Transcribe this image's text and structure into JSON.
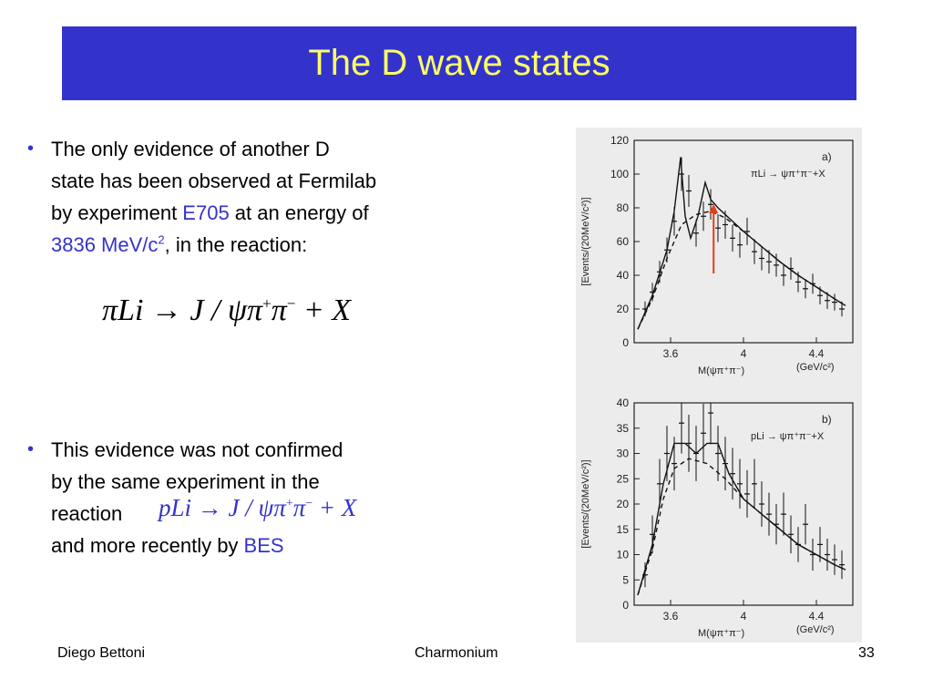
{
  "slide": {
    "title": "The D wave states",
    "bullet1": {
      "line1": "The only evidence of another D",
      "line2": "state has been observed at Fermilab",
      "line3_pre": "by experiment ",
      "line3_exp": "E705",
      "line3_post": " at an energy of",
      "line4_val": "3836 MeV/c",
      "line4_sup": "2",
      "line4_post": ", in the reaction:"
    },
    "equation1": {
      "lhs": "πLi",
      "arrow": "→",
      "jpsi": "J / ψ",
      "pi_plus": "π",
      "plus_sup": "+",
      "pi_minus": "π",
      "minus_sup": "−",
      "rest": "+ X"
    },
    "bullet2": {
      "line1": "This evidence was not confirmed",
      "line2": "by the same experiment in the",
      "line3": "reaction",
      "line4_pre": "and more recently by ",
      "line4_exp": "BES"
    },
    "equation2": {
      "lhs": "pLi",
      "arrow": "→",
      "jpsi": "J / ψ",
      "pi_plus": "π",
      "plus_sup": "+",
      "pi_minus": "π",
      "minus_sup": "−",
      "rest": "+ X"
    },
    "footer": {
      "author": "Diego Bettoni",
      "topic": "Charmonium",
      "page": "33"
    }
  },
  "colors": {
    "title_bg": "#3333cc",
    "title_text": "#ffff66",
    "accent": "#3333cc",
    "marker": "#e0401a"
  },
  "chart_data": [
    {
      "type": "scatter",
      "title": "",
      "panel_label": "a)",
      "legend": "πLi → ψπ⁺π⁻+X",
      "xlabel": "M(ψπ⁺π⁻)",
      "xunit": "(GeV/c²)",
      "ylabel": "[Events/(20MeV/c²)]",
      "xlim": [
        3.4,
        4.6
      ],
      "ylim": [
        0,
        120
      ],
      "xticks": [
        "3.6",
        "4",
        "4.4"
      ],
      "yticks": [
        "0",
        "20",
        "40",
        "60",
        "80",
        "100",
        "120"
      ],
      "marker_arrow_x": 3.836,
      "x": [
        3.46,
        3.5,
        3.54,
        3.58,
        3.62,
        3.66,
        3.7,
        3.74,
        3.78,
        3.82,
        3.86,
        3.9,
        3.94,
        3.98,
        4.02,
        4.06,
        4.1,
        4.14,
        4.18,
        4.22,
        4.26,
        4.3,
        4.34,
        4.38,
        4.42,
        4.46,
        4.5,
        4.54
      ],
      "y": [
        20,
        30,
        42,
        55,
        72,
        100,
        90,
        65,
        75,
        82,
        68,
        70,
        62,
        58,
        66,
        54,
        50,
        48,
        46,
        40,
        44,
        36,
        32,
        35,
        28,
        25,
        24,
        20
      ],
      "series": [
        {
          "name": "",
          "x": [
            3.42,
            3.5,
            3.58,
            3.62,
            3.655,
            3.68,
            3.71,
            3.75,
            3.79,
            3.82,
            3.86,
            3.92,
            4.0,
            4.1,
            4.2,
            4.3,
            4.4,
            4.5,
            4.56
          ],
          "y": [
            8,
            28,
            55,
            78,
            110,
            75,
            62,
            75,
            95,
            85,
            80,
            74,
            66,
            57,
            48,
            40,
            33,
            26,
            22
          ]
        },
        {
          "name": "",
          "x": [
            3.42,
            3.5,
            3.58,
            3.66,
            3.74,
            3.82,
            3.9,
            4.0,
            4.1,
            4.2,
            4.3,
            4.4,
            4.5,
            4.56
          ],
          "y": [
            8,
            26,
            50,
            70,
            76,
            78,
            74,
            66,
            57,
            48,
            40,
            33,
            26,
            22
          ]
        }
      ]
    },
    {
      "type": "scatter",
      "title": "",
      "panel_label": "b)",
      "legend": "pLi → ψπ⁺π⁻+X",
      "xlabel": "M(ψπ⁺π⁻)",
      "xunit": "(GeV/c²)",
      "ylabel": "[Events/(20MeV/c²)]",
      "xlim": [
        3.4,
        4.6
      ],
      "ylim": [
        0,
        40
      ],
      "xticks": [
        "3.6",
        "4",
        "4.4"
      ],
      "yticks": [
        "0",
        "5",
        "10",
        "15",
        "20",
        "25",
        "30",
        "35",
        "40"
      ],
      "x": [
        3.46,
        3.5,
        3.54,
        3.58,
        3.62,
        3.66,
        3.7,
        3.74,
        3.78,
        3.82,
        3.86,
        3.9,
        3.94,
        3.98,
        4.02,
        4.06,
        4.1,
        4.14,
        4.18,
        4.22,
        4.26,
        4.3,
        4.34,
        4.38,
        4.42,
        4.46,
        4.5,
        4.54
      ],
      "y": [
        6,
        14,
        24,
        30,
        28,
        36,
        32,
        30,
        34,
        38,
        30,
        28,
        26,
        24,
        22,
        24,
        20,
        18,
        16,
        18,
        14,
        12,
        16,
        10,
        12,
        10,
        9,
        8
      ],
      "series": [
        {
          "name": "",
          "x": [
            3.42,
            3.5,
            3.56,
            3.62,
            3.68,
            3.74,
            3.8,
            3.86,
            3.92,
            4.0,
            4.1,
            4.2,
            4.3,
            4.4,
            4.5,
            4.56
          ],
          "y": [
            2,
            12,
            24,
            32,
            32,
            30,
            32,
            32,
            26,
            21,
            18,
            15,
            12,
            10,
            8,
            7
          ]
        },
        {
          "name": "",
          "x": [
            3.42,
            3.5,
            3.56,
            3.62,
            3.7,
            3.8,
            3.9,
            4.0,
            4.1,
            4.2,
            4.3,
            4.4,
            4.5,
            4.56
          ],
          "y": [
            2,
            11,
            21,
            27,
            29,
            28,
            25,
            21,
            18,
            15,
            12,
            10,
            8,
            7
          ]
        }
      ]
    }
  ]
}
